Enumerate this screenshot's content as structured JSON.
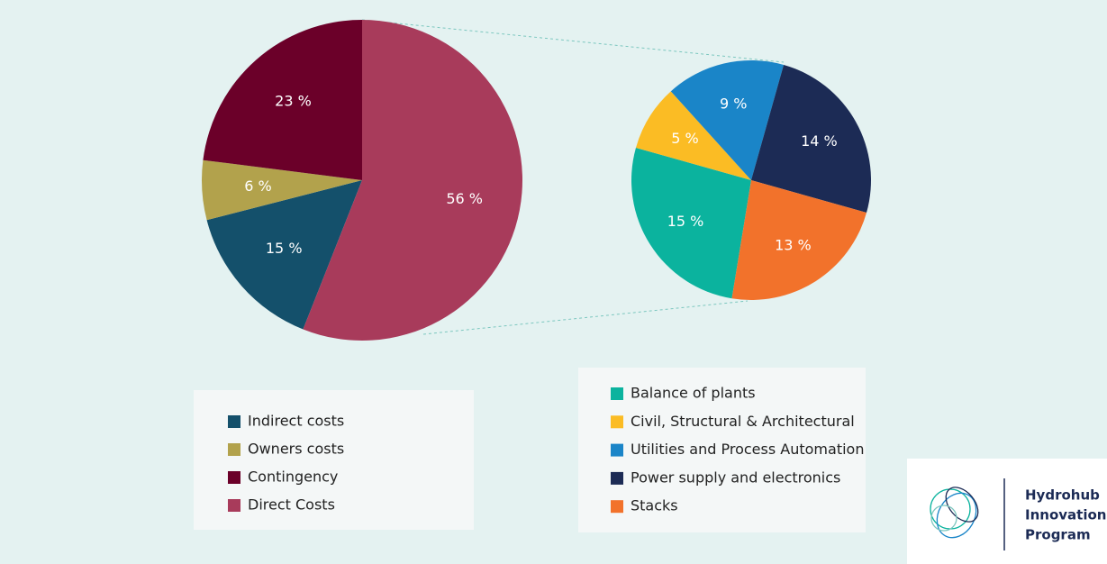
{
  "chart_data": [
    {
      "type": "pie",
      "categories": [
        "Indirect costs",
        "Owners costs",
        "Contingency",
        "Direct Costs"
      ],
      "values": [
        15,
        6,
        23,
        56
      ],
      "value_labels": [
        "15 %",
        "6 %",
        "23 %",
        "56 %"
      ],
      "colors": [
        "#14506b",
        "#b2a24c",
        "#6b0029",
        "#a83b5b"
      ]
    },
    {
      "type": "pie",
      "categories": [
        "Balance of plants",
        "Civil, Structural & Architectural",
        "Utilities and Process Automation",
        "Power supply and electronics",
        "Stacks"
      ],
      "values": [
        15,
        5,
        9,
        14,
        13
      ],
      "value_labels": [
        "15 %",
        "5 %",
        "9 %",
        "14 %",
        "13 %"
      ],
      "colors": [
        "#0bb39e",
        "#fbbc24",
        "#1a85c8",
        "#1c2b55",
        "#f2722b"
      ]
    }
  ],
  "logo": {
    "lines": [
      "Hydrohub",
      "Innovation",
      "Program"
    ]
  }
}
